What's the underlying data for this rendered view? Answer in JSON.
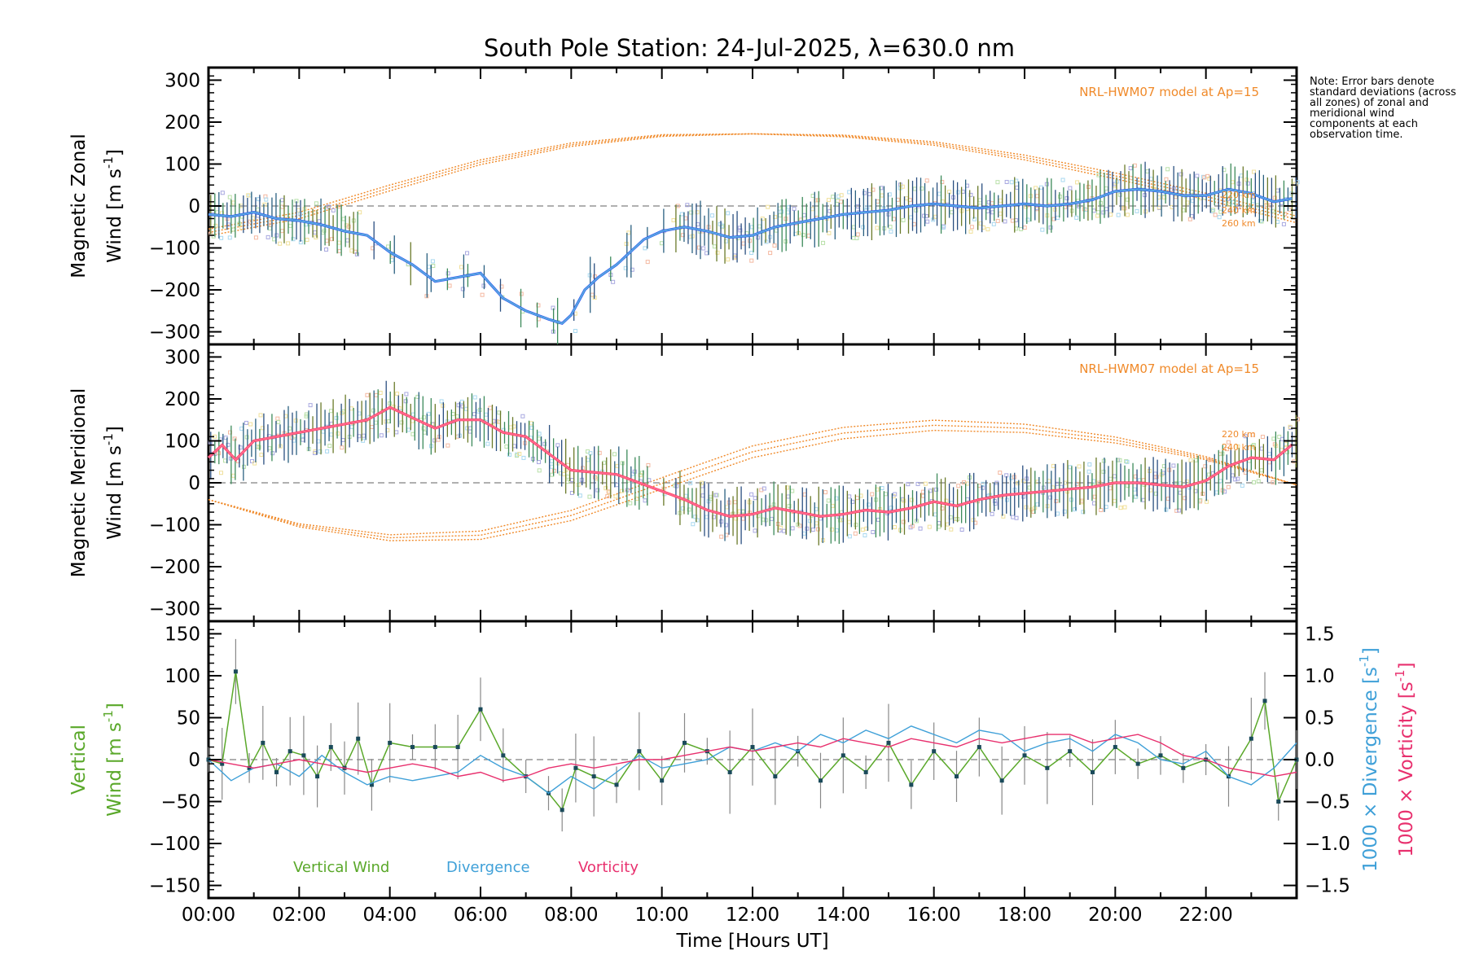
{
  "title": "South Pole Station: 24-Jul-2025, λ=630.0 nm",
  "note": "Note: Error bars denote standard deviations (across all zones) of zonal and meridional wind components at each observation time.",
  "model_label": "NRL-HWM07 model at Ap=15",
  "model_altitudes": [
    "220 km",
    "240 km",
    "260 km"
  ],
  "x_axis": {
    "label": "Time [Hours UT]",
    "ticks": [
      "00:00",
      "02:00",
      "04:00",
      "06:00",
      "08:00",
      "10:00",
      "12:00",
      "14:00",
      "16:00",
      "18:00",
      "20:00",
      "22:00"
    ]
  },
  "colors": {
    "zonal": "#2a4ff0",
    "meridional": "#ff3355",
    "model": "#f08a2a",
    "vertical": "#5aa82a",
    "divergence": "#3fa0d8",
    "vorticity": "#e8306e",
    "errorbar": "#2a6080",
    "scatter": "#a8a8e0",
    "baseline": "#808080"
  },
  "chart_data": [
    {
      "type": "line",
      "panel": "zonal",
      "ylabel_1": "Magnetic Zonal",
      "ylabel_2": "Wind [m s",
      "ylabel_sup": "-1",
      "ylabel_end": "]",
      "xlim": [
        0,
        24
      ],
      "ylim": [
        -330,
        330
      ],
      "yticks": [
        "300",
        "200",
        "100",
        "0",
        "−100",
        "−200",
        "−300"
      ],
      "yticks_values": [
        300,
        200,
        100,
        0,
        -100,
        -200,
        -300
      ],
      "series": [
        {
          "name": "Zonal wind",
          "x": [
            0.0,
            0.5,
            1.0,
            1.5,
            2.0,
            2.5,
            3.0,
            3.5,
            4.0,
            4.5,
            5.0,
            5.5,
            6.0,
            6.5,
            7.0,
            7.5,
            7.8,
            8.0,
            8.3,
            8.6,
            9.0,
            9.3,
            9.6,
            10.0,
            10.5,
            11.0,
            11.5,
            12.0,
            12.5,
            13.0,
            13.5,
            14.0,
            14.5,
            15.0,
            15.5,
            16.0,
            16.5,
            17.0,
            17.5,
            18.0,
            18.5,
            19.0,
            19.5,
            20.0,
            20.5,
            21.0,
            21.5,
            22.0,
            22.5,
            23.0,
            23.5,
            24.0
          ],
          "values": [
            -20,
            -25,
            -15,
            -30,
            -35,
            -45,
            -60,
            -70,
            -110,
            -140,
            -180,
            -170,
            -160,
            -220,
            -250,
            -270,
            -280,
            -260,
            -200,
            -170,
            -140,
            -110,
            -80,
            -60,
            -50,
            -60,
            -75,
            -70,
            -50,
            -40,
            -30,
            -20,
            -15,
            -10,
            0,
            5,
            0,
            -5,
            0,
            5,
            0,
            5,
            15,
            35,
            40,
            35,
            25,
            25,
            40,
            30,
            10,
            20
          ]
        },
        {
          "name": "NRL-HWM07 model",
          "x": [
            0,
            2,
            4,
            6,
            8,
            10,
            12,
            14,
            16,
            18,
            20,
            22,
            24
          ],
          "values": [
            -55,
            -15,
            50,
            110,
            150,
            170,
            172,
            165,
            145,
            110,
            65,
            15,
            -40
          ],
          "offsets": [
            0,
            8,
            16
          ]
        }
      ]
    },
    {
      "type": "line",
      "panel": "meridional",
      "ylabel_1": "Magnetic Meridional",
      "ylabel_2": "Wind [m s",
      "ylabel_sup": "-1",
      "ylabel_end": "]",
      "xlim": [
        0,
        24
      ],
      "ylim": [
        -330,
        330
      ],
      "yticks": [
        "300",
        "200",
        "100",
        "0",
        "−100",
        "−200",
        "−300"
      ],
      "yticks_values": [
        300,
        200,
        100,
        0,
        -100,
        -200,
        -300
      ],
      "series": [
        {
          "name": "Meridional wind",
          "x": [
            0.0,
            0.3,
            0.6,
            1.0,
            1.5,
            2.0,
            2.5,
            3.0,
            3.5,
            4.0,
            4.5,
            5.0,
            5.5,
            6.0,
            6.5,
            7.0,
            7.5,
            8.0,
            8.5,
            9.0,
            9.5,
            10.0,
            10.5,
            11.0,
            11.5,
            12.0,
            12.5,
            13.0,
            13.5,
            14.0,
            14.5,
            15.0,
            15.5,
            16.0,
            16.5,
            17.0,
            17.5,
            18.0,
            18.5,
            19.0,
            19.5,
            20.0,
            20.5,
            21.0,
            21.5,
            22.0,
            22.5,
            23.0,
            23.5,
            24.0
          ],
          "values": [
            60,
            90,
            55,
            100,
            110,
            120,
            130,
            140,
            150,
            180,
            155,
            130,
            150,
            150,
            120,
            110,
            70,
            30,
            25,
            20,
            0,
            -20,
            -40,
            -65,
            -80,
            -75,
            -60,
            -70,
            -80,
            -75,
            -65,
            -70,
            -60,
            -45,
            -55,
            -40,
            -30,
            -25,
            -20,
            -15,
            -10,
            0,
            0,
            -5,
            -10,
            5,
            40,
            60,
            55,
            100
          ]
        },
        {
          "name": "NRL-HWM07 model",
          "x": [
            0,
            2,
            4,
            6,
            8,
            10,
            12,
            14,
            16,
            18,
            20,
            22,
            24
          ],
          "values": [
            -40,
            -105,
            -138,
            -135,
            -90,
            -15,
            60,
            105,
            125,
            120,
            95,
            55,
            -5
          ],
          "offsets": [
            0,
            14,
            28
          ]
        }
      ]
    },
    {
      "type": "line",
      "panel": "vertical",
      "ylabel_1": "Vertical",
      "ylabel_2": "Wind [m s",
      "ylabel_sup": "-1",
      "ylabel_end": "]",
      "y2label_1": "1000 × Divergence [s",
      "y2label_2": "1000 × Vorticity [s",
      "y2label_sup": "-1",
      "y2label_end": "]",
      "xlim": [
        0,
        24
      ],
      "ylim": [
        -165,
        165
      ],
      "y2lim": [
        -1.65,
        1.65
      ],
      "yticks": [
        "150",
        "100",
        "50",
        "0",
        "−50",
        "−100",
        "−150"
      ],
      "yticks_values": [
        150,
        100,
        50,
        0,
        -50,
        -100,
        -150
      ],
      "y2ticks": [
        "1.5",
        "1.0",
        "0.5",
        "0.0",
        "−0.5",
        "−1.0",
        "−1.5"
      ],
      "y2ticks_values": [
        1.5,
        1.0,
        0.5,
        0.0,
        -0.5,
        -1.0,
        -1.5
      ],
      "legend": [
        "Vertical Wind",
        "Divergence",
        "Vorticity"
      ],
      "series": [
        {
          "name": "Vertical Wind",
          "x": [
            0.0,
            0.3,
            0.6,
            0.9,
            1.2,
            1.5,
            1.8,
            2.1,
            2.4,
            2.7,
            3.0,
            3.3,
            3.6,
            4.0,
            4.5,
            5.0,
            5.5,
            6.0,
            6.5,
            7.0,
            7.5,
            7.8,
            8.1,
            8.5,
            9.0,
            9.5,
            10.0,
            10.5,
            11.0,
            11.5,
            12.0,
            12.5,
            13.0,
            13.5,
            14.0,
            14.5,
            15.0,
            15.5,
            16.0,
            16.5,
            17.0,
            17.5,
            18.0,
            18.5,
            19.0,
            19.5,
            20.0,
            20.5,
            21.0,
            21.5,
            22.0,
            22.5,
            23.0,
            23.3,
            23.6,
            24.0
          ],
          "values": [
            0,
            -5,
            105,
            -10,
            20,
            -15,
            10,
            5,
            -20,
            15,
            -10,
            25,
            -30,
            20,
            15,
            15,
            15,
            60,
            5,
            -20,
            -40,
            -60,
            -10,
            -20,
            -30,
            10,
            -25,
            20,
            10,
            -15,
            15,
            -20,
            10,
            -25,
            5,
            -15,
            20,
            -30,
            10,
            -20,
            15,
            -25,
            5,
            -10,
            10,
            -15,
            15,
            -5,
            5,
            -10,
            0,
            -20,
            25,
            70,
            -50,
            0
          ]
        },
        {
          "name": "Divergence",
          "axis": "right",
          "x": [
            0.0,
            0.5,
            1.0,
            1.5,
            2.0,
            2.5,
            3.0,
            3.5,
            4.0,
            4.5,
            5.0,
            5.5,
            6.0,
            6.5,
            7.0,
            7.5,
            8.0,
            8.5,
            9.0,
            9.5,
            10.0,
            10.5,
            11.0,
            11.5,
            12.0,
            12.5,
            13.0,
            13.5,
            14.0,
            14.5,
            15.0,
            15.5,
            16.0,
            16.5,
            17.0,
            17.5,
            18.0,
            18.5,
            19.0,
            19.5,
            20.0,
            20.5,
            21.0,
            21.5,
            22.0,
            22.5,
            23.0,
            23.5,
            24.0
          ],
          "values": [
            0.0,
            -0.25,
            -0.1,
            -0.05,
            -0.2,
            0.05,
            -0.15,
            -0.3,
            -0.2,
            -0.25,
            -0.2,
            -0.15,
            0.05,
            -0.1,
            -0.2,
            -0.4,
            -0.2,
            -0.35,
            -0.15,
            0.05,
            -0.1,
            -0.05,
            0.0,
            0.15,
            0.1,
            0.2,
            0.1,
            0.3,
            0.2,
            0.35,
            0.25,
            0.4,
            0.3,
            0.2,
            0.35,
            0.3,
            0.1,
            0.2,
            0.25,
            0.1,
            0.3,
            0.2,
            0.0,
            -0.05,
            0.1,
            -0.2,
            -0.3,
            -0.1,
            0.2
          ]
        },
        {
          "name": "Vorticity",
          "axis": "right",
          "x": [
            0.0,
            0.5,
            1.0,
            1.5,
            2.0,
            2.5,
            3.0,
            3.5,
            4.0,
            4.5,
            5.0,
            5.5,
            6.0,
            6.5,
            7.0,
            7.5,
            8.0,
            8.5,
            9.0,
            9.5,
            10.0,
            10.5,
            11.0,
            11.5,
            12.0,
            12.5,
            13.0,
            13.5,
            14.0,
            14.5,
            15.0,
            15.5,
            16.0,
            16.5,
            17.0,
            17.5,
            18.0,
            18.5,
            19.0,
            19.5,
            20.0,
            20.5,
            21.0,
            21.5,
            22.0,
            22.5,
            23.0,
            23.5,
            24.0
          ],
          "values": [
            0.0,
            -0.05,
            -0.1,
            -0.05,
            0.0,
            -0.05,
            -0.1,
            -0.15,
            -0.1,
            -0.05,
            -0.1,
            -0.2,
            -0.15,
            -0.25,
            -0.2,
            -0.1,
            -0.05,
            -0.1,
            -0.05,
            0.0,
            0.0,
            0.05,
            0.1,
            0.15,
            0.1,
            0.15,
            0.2,
            0.15,
            0.25,
            0.2,
            0.15,
            0.25,
            0.2,
            0.15,
            0.25,
            0.2,
            0.25,
            0.3,
            0.3,
            0.2,
            0.25,
            0.3,
            0.2,
            0.05,
            0.0,
            -0.1,
            -0.15,
            -0.2,
            -0.15
          ]
        }
      ]
    }
  ]
}
